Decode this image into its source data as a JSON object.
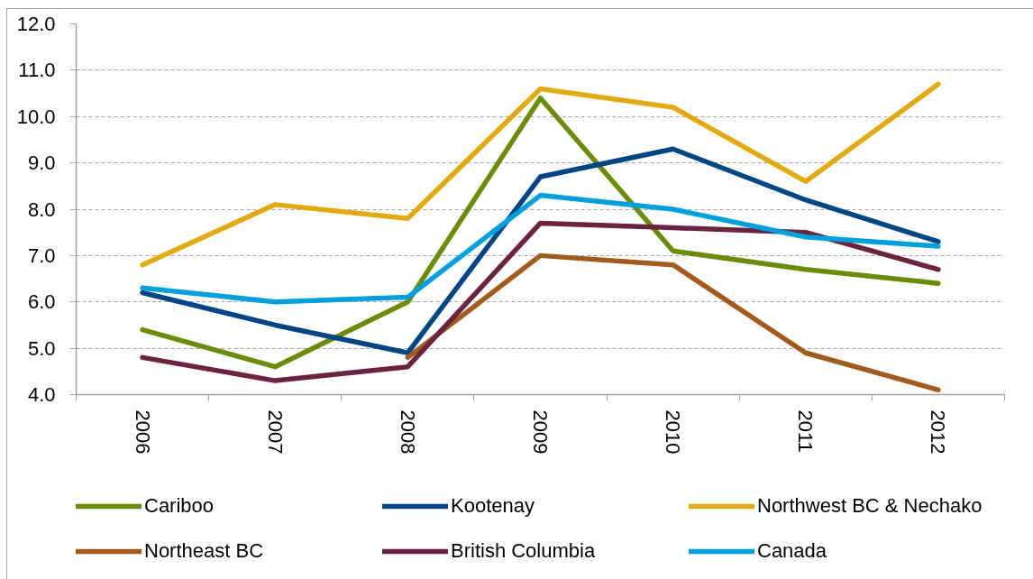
{
  "chart_data": {
    "type": "line",
    "categories": [
      "2006",
      "2007",
      "2008",
      "2009",
      "2010",
      "2011",
      "2012"
    ],
    "series": [
      {
        "name": "Cariboo",
        "color": "#6b8c0a",
        "values": [
          5.4,
          4.6,
          6.0,
          10.4,
          7.1,
          6.7,
          6.4
        ]
      },
      {
        "name": "Kootenay",
        "color": "#004585",
        "values": [
          6.2,
          5.5,
          4.9,
          8.7,
          9.3,
          8.2,
          7.3
        ]
      },
      {
        "name": "Northwest BC & Nechako",
        "color": "#e2aa10",
        "values": [
          6.8,
          8.1,
          7.8,
          10.6,
          10.2,
          8.6,
          10.7
        ]
      },
      {
        "name": "Northeast BC",
        "color": "#a35a1d",
        "values": [
          null,
          null,
          4.8,
          7.0,
          6.8,
          4.9,
          4.1
        ]
      },
      {
        "name": "British Columbia",
        "color": "#6b2340",
        "values": [
          4.8,
          4.3,
          4.6,
          7.7,
          7.6,
          7.5,
          6.7
        ]
      },
      {
        "name": "Canada",
        "color": "#00a0de",
        "values": [
          6.3,
          6.0,
          6.1,
          8.3,
          8.0,
          7.4,
          7.2
        ]
      }
    ],
    "ylim": [
      4,
      12
    ],
    "yticks": [
      {
        "value": 4,
        "label": "4.0"
      },
      {
        "value": 5,
        "label": "5.0"
      },
      {
        "value": 6,
        "label": "6.0"
      },
      {
        "value": 7,
        "label": "7.0"
      },
      {
        "value": 8,
        "label": "8.0"
      },
      {
        "value": 9,
        "label": "9.0"
      },
      {
        "value": 10,
        "label": "10.0"
      },
      {
        "value": 11,
        "label": "11.0"
      },
      {
        "value": 12,
        "label": "12.0"
      }
    ],
    "grid": "y",
    "legend": "bottom",
    "line_style": "solid"
  }
}
